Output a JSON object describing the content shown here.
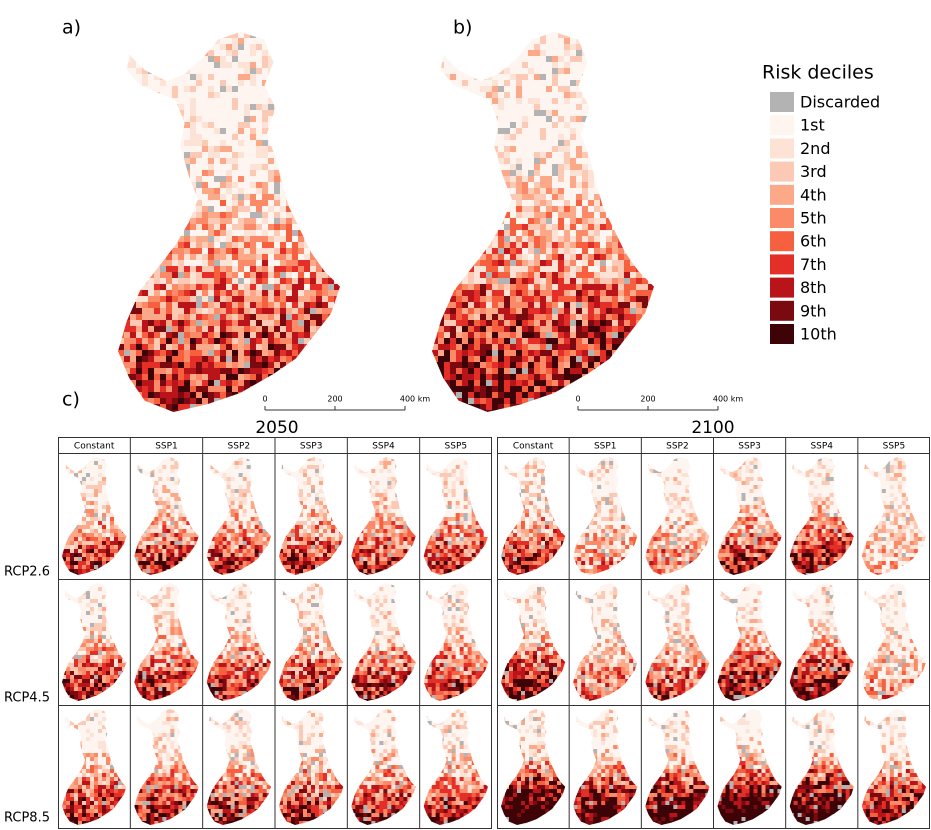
{
  "panels": {
    "a": "a)",
    "b": "b)",
    "c": "c)"
  },
  "legend": {
    "title": "Risk deciles",
    "items": [
      {
        "label": "Discarded",
        "color": "#b3b3b3"
      },
      {
        "label": "1st",
        "color": "#fef5f0"
      },
      {
        "label": "2nd",
        "color": "#fde2d6"
      },
      {
        "label": "3rd",
        "color": "#fcc9b4"
      },
      {
        "label": "4th",
        "color": "#fca98a"
      },
      {
        "label": "5th",
        "color": "#fb8a68"
      },
      {
        "label": "6th",
        "color": "#f6603f"
      },
      {
        "label": "7th",
        "color": "#e32f27"
      },
      {
        "label": "8th",
        "color": "#b81419"
      },
      {
        "label": "9th",
        "color": "#7a0a10"
      },
      {
        "label": "10th",
        "color": "#3d0306"
      }
    ]
  },
  "scale_bar": {
    "labels": [
      "0",
      "200",
      "400 km"
    ]
  },
  "grid": {
    "years": [
      "2050",
      "2100"
    ],
    "columns": [
      "Constant",
      "SSP1",
      "SSP2",
      "SSP3",
      "SSP4",
      "SSP5"
    ],
    "rows": [
      "RCP2.6",
      "RCP4.5",
      "RCP8.5"
    ]
  }
}
